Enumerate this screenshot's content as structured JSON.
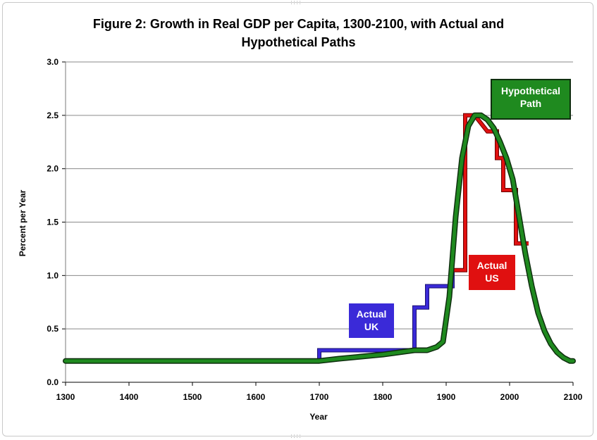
{
  "chart_data": {
    "type": "line",
    "title_line1": "Figure 2: Growth in Real GDP per Capita, 1300-2100, with Actual and",
    "title_line2": "Hypothetical Paths",
    "xlabel": "Year",
    "ylabel": "Percent per Year",
    "xlim": [
      1300,
      2100
    ],
    "ylim": [
      0,
      3
    ],
    "x_ticks": [
      "1300",
      "1400",
      "1500",
      "1600",
      "1700",
      "1800",
      "1900",
      "2000",
      "2100"
    ],
    "y_ticks": [
      "0.0",
      "0.5",
      "1.0",
      "1.5",
      "2.0",
      "2.5",
      "3.0"
    ],
    "grid": true,
    "colors": {
      "uk": "#3a2ad8",
      "us": "#e01010",
      "hyp_outline": "#0e2e0e",
      "hyp_fill": "#1f8a1f",
      "grid": "#8a8a8a"
    },
    "series": [
      {
        "key": "uk",
        "kind": "step",
        "x": [
          1300,
          1700,
          1700,
          1850,
          1850,
          1870,
          1870,
          1890,
          1890,
          1910,
          1910
        ],
        "y": [
          0.2,
          0.2,
          0.3,
          0.3,
          0.7,
          0.7,
          0.9,
          0.9,
          0.9,
          0.9,
          1.05
        ]
      },
      {
        "key": "us",
        "kind": "step",
        "x": [
          1910,
          1930,
          1930,
          1945,
          1945,
          1965,
          1965,
          1980,
          1980,
          1990,
          1990,
          2000,
          2000,
          2010,
          2010,
          2030
        ],
        "y": [
          1.05,
          1.05,
          2.5,
          2.5,
          2.5,
          2.35,
          2.35,
          2.35,
          2.1,
          2.1,
          1.8,
          1.8,
          1.8,
          1.8,
          1.3,
          1.3
        ]
      },
      {
        "key": "hyp",
        "kind": "line",
        "x": [
          1300,
          1700,
          1730,
          1800,
          1850,
          1870,
          1885,
          1895,
          1905,
          1915,
          1925,
          1935,
          1945,
          1955,
          1965,
          1975,
          1985,
          1995,
          2005,
          2015,
          2025,
          2035,
          2045,
          2055,
          2065,
          2075,
          2085,
          2095,
          2100
        ],
        "y": [
          0.2,
          0.2,
          0.22,
          0.26,
          0.3,
          0.3,
          0.33,
          0.38,
          0.8,
          1.55,
          2.1,
          2.4,
          2.5,
          2.5,
          2.46,
          2.38,
          2.25,
          2.1,
          1.9,
          1.55,
          1.2,
          0.9,
          0.65,
          0.48,
          0.36,
          0.28,
          0.23,
          0.2,
          0.2
        ]
      }
    ],
    "annotations": {
      "uk": {
        "line1": "Actual",
        "line2": "UK"
      },
      "us": {
        "line1": "Actual",
        "line2": "US"
      },
      "hyp": {
        "line1": "Hypothetical",
        "line2": "Path"
      }
    }
  }
}
